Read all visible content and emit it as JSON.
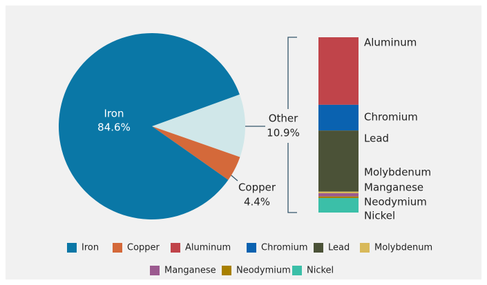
{
  "chart_data": {
    "type": "pie-of-bar",
    "pie": {
      "labels": [
        "Iron",
        "Copper",
        "Other"
      ],
      "values": [
        84.6,
        4.4,
        10.9
      ],
      "value_labels": [
        "84.6%",
        "4.4%",
        "10.9%"
      ],
      "colors": [
        "#0a77a6",
        "#d4693a",
        "#d0e7e9"
      ]
    },
    "bar": {
      "categories": [
        "Aluminum",
        "Chromium",
        "Lead",
        "Molybdenum",
        "Manganese",
        "Neodymium",
        "Nickel"
      ],
      "values": [
        4.2,
        1.6,
        3.8,
        0.1,
        0.2,
        0.1,
        0.9
      ],
      "colors": [
        "#c0444a",
        "#0a62b0",
        "#4b5237",
        "#d8b95a",
        "#9b5a8f",
        "#a88000",
        "#3bbfa8"
      ]
    }
  }
}
